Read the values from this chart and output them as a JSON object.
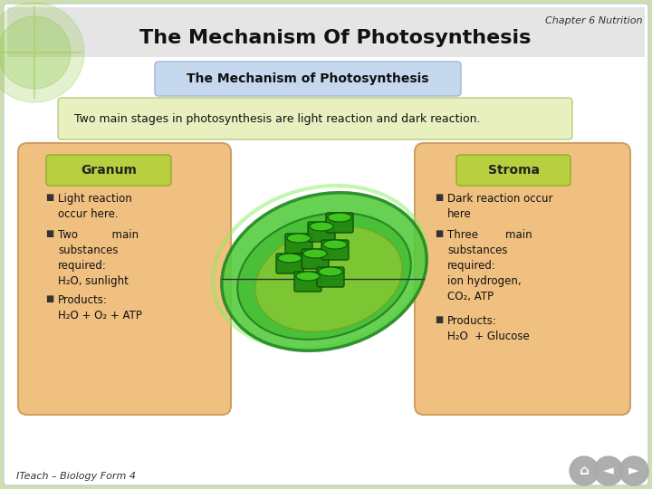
{
  "bg_color": "#cde0b0",
  "slide_bg": "#ffffff",
  "title_bar_color": "#e8e8e8",
  "chapter_text": "Chapter 6 Nutrition",
  "main_title": "The Mechanism Of Photosynthesis",
  "subtitle_box_color": "#c5d8ee",
  "subtitle_text": "The Mechanism of Photosynthesis",
  "intro_box_color": "#e8f0c0",
  "intro_text": "Two main stages in photosynthesis are light reaction and dark reaction.",
  "left_box_color_top": "#f5c87a",
  "left_box_color_bot": "#e8d8a0",
  "left_box_title": "Granum",
  "left_box_title_bg": "#b8d040",
  "right_box_color_top": "#f5c87a",
  "right_box_color_bot": "#e8d8a0",
  "right_box_title": "Stroma",
  "right_box_title_bg": "#b8d040",
  "footer_text": "ITeach – Biology Form 4",
  "corner_deco_color": "#90c848",
  "nav_color": "#909090"
}
